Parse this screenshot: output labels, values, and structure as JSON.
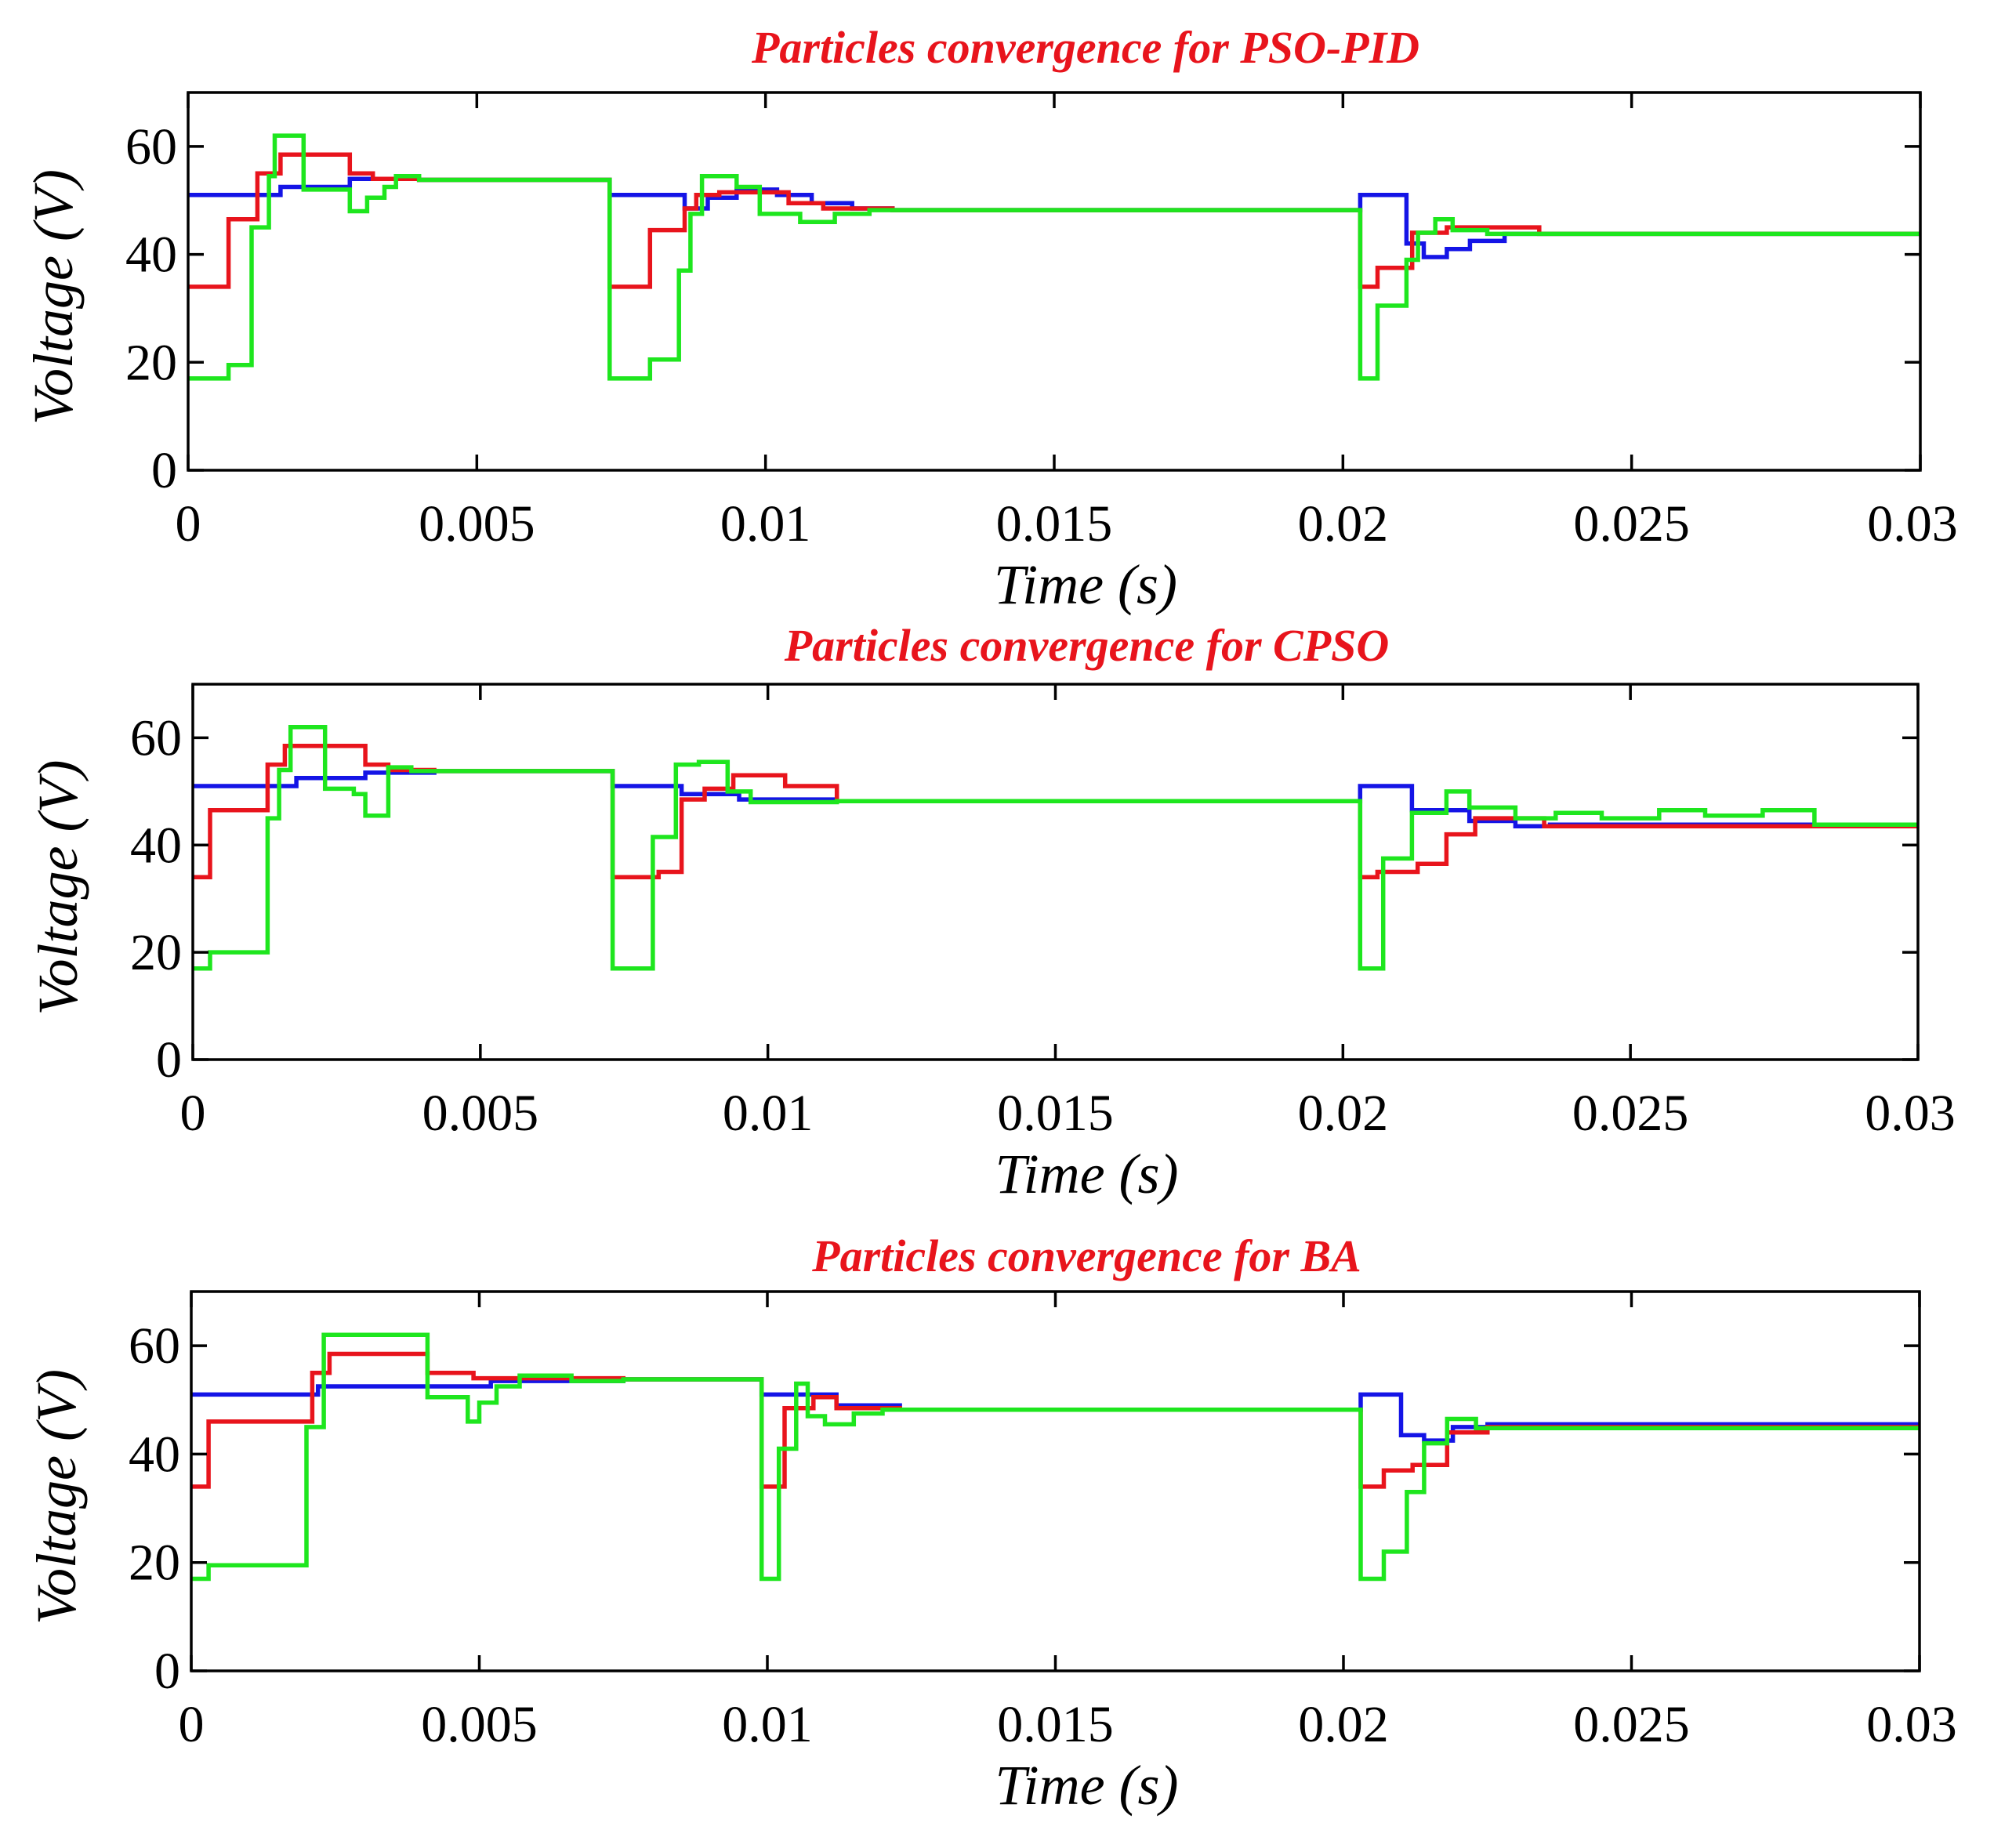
{
  "chart_data": [
    {
      "type": "line",
      "title": "Particles convergence for PSO-PID",
      "xlabel": "Time (s)",
      "ylabel": "Voltage (V)",
      "xlim": [
        0,
        0.03
      ],
      "ylim": [
        0,
        70
      ],
      "xticks": [
        "0",
        "0.005",
        "0.01",
        "0.015",
        "0.02",
        "0.025",
        "0.03"
      ],
      "yticks": [
        "0",
        "20",
        "40",
        "60"
      ],
      "grid": false,
      "series": [
        {
          "color": "#1414e6",
          "x": [
            0,
            0.0016,
            0.0016,
            0.0028,
            0.0028,
            0.004,
            0.004,
            0.0073,
            0.0073,
            0.0086,
            0.0086,
            0.009,
            0.009,
            0.0095,
            0.0095,
            0.0102,
            0.0102,
            0.0108,
            0.0108,
            0.0115,
            0.0115,
            0.0122,
            0.0122,
            0.0203,
            0.0203,
            0.0211,
            0.0211,
            0.0214,
            0.0214,
            0.0218,
            0.0218,
            0.0222,
            0.0222,
            0.0228,
            0.0228,
            0.03
          ],
          "y": [
            51,
            51,
            52.5,
            52.5,
            54,
            54,
            53.8,
            53.8,
            51,
            51,
            48.5,
            48.5,
            50.5,
            50.5,
            52,
            52,
            51,
            51,
            49.5,
            49.5,
            48.5,
            48.5,
            48.2,
            48.2,
            51,
            51,
            42,
            42,
            39.5,
            39.5,
            41,
            41,
            42.5,
            42.5,
            43.8,
            43.8
          ]
        },
        {
          "color": "#e8141c",
          "x": [
            0,
            0.0007,
            0.0007,
            0.0012,
            0.0012,
            0.0016,
            0.0016,
            0.0028,
            0.0028,
            0.0032,
            0.0032,
            0.004,
            0.004,
            0.0073,
            0.0073,
            0.008,
            0.008,
            0.0086,
            0.0086,
            0.0088,
            0.0088,
            0.0092,
            0.0092,
            0.0104,
            0.0104,
            0.011,
            0.011,
            0.0122,
            0.0122,
            0.0203,
            0.0203,
            0.0206,
            0.0206,
            0.0212,
            0.0212,
            0.0218,
            0.0218,
            0.0234,
            0.0234,
            0.03
          ],
          "y": [
            34,
            34,
            46.5,
            46.5,
            55,
            55,
            58.5,
            58.5,
            55,
            55,
            54,
            54,
            53.8,
            53.8,
            34,
            34,
            44.5,
            44.5,
            48.5,
            48.5,
            51,
            51,
            51.5,
            51.5,
            49.5,
            49.5,
            48.5,
            48.5,
            48.2,
            48.2,
            34,
            34,
            37.5,
            37.5,
            44,
            44,
            45,
            45,
            43.8,
            43.8
          ]
        },
        {
          "color": "#1ee61e",
          "x": [
            0,
            0.0007,
            0.0007,
            0.0011,
            0.0011,
            0.0014,
            0.0014,
            0.0015,
            0.0015,
            0.002,
            0.002,
            0.0028,
            0.0028,
            0.0031,
            0.0031,
            0.0034,
            0.0034,
            0.0036,
            0.0036,
            0.004,
            0.004,
            0.0073,
            0.0073,
            0.008,
            0.008,
            0.0085,
            0.0085,
            0.0087,
            0.0087,
            0.0089,
            0.0089,
            0.0095,
            0.0095,
            0.0099,
            0.0099,
            0.0106,
            0.0106,
            0.0112,
            0.0112,
            0.0118,
            0.0118,
            0.0203,
            0.0203,
            0.0206,
            0.0206,
            0.0211,
            0.0211,
            0.0213,
            0.0213,
            0.0216,
            0.0216,
            0.0219,
            0.0219,
            0.0225,
            0.0225,
            0.03
          ],
          "y": [
            17,
            17,
            19.5,
            19.5,
            45,
            45,
            54.5,
            54.5,
            62,
            62,
            52,
            52,
            48,
            48,
            50.5,
            50.5,
            52.5,
            52.5,
            54.5,
            54.5,
            53.8,
            53.8,
            17,
            17,
            20.5,
            20.5,
            37,
            37,
            47.5,
            47.5,
            54.5,
            54.5,
            52.5,
            52.5,
            47.5,
            47.5,
            46,
            46,
            47.5,
            47.5,
            48.2,
            48.2,
            17,
            17,
            30.5,
            30.5,
            39,
            39,
            44,
            44,
            46.5,
            46.5,
            44.5,
            44.5,
            43.8,
            43.8
          ]
        }
      ]
    },
    {
      "type": "line",
      "title": "Particles convergence for CPSO",
      "xlabel": "Time (s)",
      "ylabel": "Voltage (V)",
      "xlim": [
        0,
        0.03
      ],
      "ylim": [
        0,
        70
      ],
      "xticks": [
        "0",
        "0.005",
        "0.01",
        "0.015",
        "0.02",
        "0.025",
        "0.03"
      ],
      "yticks": [
        "0",
        "20",
        "40",
        "60"
      ],
      "grid": false,
      "series": [
        {
          "color": "#1414e6",
          "x": [
            0,
            0.0018,
            0.0018,
            0.003,
            0.003,
            0.0042,
            0.0042,
            0.0073,
            0.0073,
            0.0085,
            0.0085,
            0.0095,
            0.0095,
            0.0112,
            0.0112,
            0.0203,
            0.0203,
            0.0212,
            0.0212,
            0.0222,
            0.0222,
            0.023,
            0.023,
            0.0236,
            0.0236,
            0.03
          ],
          "y": [
            51,
            51,
            52.5,
            52.5,
            53.5,
            53.5,
            53.8,
            53.8,
            51,
            51,
            49.5,
            49.5,
            48.5,
            48.5,
            48.2,
            48.2,
            51,
            51,
            46.5,
            46.5,
            44.5,
            44.5,
            43.5,
            43.5,
            43.8,
            43.8
          ]
        },
        {
          "color": "#e8141c",
          "x": [
            0,
            0.0003,
            0.0003,
            0.0013,
            0.0013,
            0.0016,
            0.0016,
            0.003,
            0.003,
            0.0034,
            0.0034,
            0.0042,
            0.0042,
            0.0073,
            0.0073,
            0.0081,
            0.0081,
            0.0085,
            0.0085,
            0.0089,
            0.0089,
            0.0094,
            0.0094,
            0.0103,
            0.0103,
            0.0112,
            0.0112,
            0.0203,
            0.0203,
            0.0206,
            0.0206,
            0.0213,
            0.0213,
            0.0218,
            0.0218,
            0.0223,
            0.0223,
            0.0235,
            0.0235,
            0.03
          ],
          "y": [
            34,
            34,
            46.5,
            46.5,
            55,
            55,
            58.5,
            58.5,
            55,
            55,
            54,
            54,
            53.8,
            53.8,
            34,
            34,
            35,
            35,
            48.5,
            48.5,
            50.5,
            50.5,
            53,
            53,
            51,
            51,
            48.2,
            48.2,
            34,
            34,
            35,
            35,
            36.5,
            36.5,
            42,
            42,
            45,
            45,
            43.5,
            43.5
          ]
        },
        {
          "color": "#1ee61e",
          "x": [
            0,
            0.0003,
            0.0003,
            0.0013,
            0.0013,
            0.0015,
            0.0015,
            0.0017,
            0.0017,
            0.0023,
            0.0023,
            0.0028,
            0.0028,
            0.003,
            0.003,
            0.0034,
            0.0034,
            0.0038,
            0.0038,
            0.0073,
            0.0073,
            0.008,
            0.008,
            0.0084,
            0.0084,
            0.0088,
            0.0088,
            0.0093,
            0.0093,
            0.0097,
            0.0097,
            0.0112,
            0.0112,
            0.0203,
            0.0203,
            0.0207,
            0.0207,
            0.0212,
            0.0212,
            0.0218,
            0.0218,
            0.0222,
            0.0222,
            0.023,
            0.023,
            0.0237,
            0.0237,
            0.0245,
            0.0245,
            0.0255,
            0.0255,
            0.0263,
            0.0263,
            0.0273,
            0.0273,
            0.0282,
            0.0282,
            0.03
          ],
          "y": [
            17,
            17,
            20,
            20,
            45,
            45,
            54,
            54,
            62,
            62,
            50.5,
            50.5,
            49.5,
            49.5,
            45.5,
            45.5,
            54.5,
            54.5,
            53.8,
            53.8,
            17,
            17,
            41.5,
            41.5,
            55,
            55,
            55.5,
            55.5,
            50,
            50,
            48,
            48,
            48.2,
            48.2,
            17,
            17,
            37.5,
            37.5,
            46,
            46,
            50,
            50,
            47,
            47,
            45,
            45,
            46,
            46,
            45,
            45,
            46.5,
            46.5,
            45.5,
            45.5,
            46.5,
            46.5,
            43.8,
            43.8
          ]
        }
      ]
    },
    {
      "type": "line",
      "title": "Particles convergence for BA",
      "xlabel": "Time (s)",
      "ylabel": "Voltage (V)",
      "xlim": [
        0,
        0.03
      ],
      "ylim": [
        0,
        70
      ],
      "xticks": [
        "0",
        "0.005",
        "0.01",
        "0.015",
        "0.02",
        "0.025",
        "0.03"
      ],
      "yticks": [
        "0",
        "20",
        "40",
        "60"
      ],
      "grid": false,
      "series": [
        {
          "color": "#1414e6",
          "x": [
            0,
            0.0022,
            0.0022,
            0.0052,
            0.0052,
            0.0075,
            0.0075,
            0.0099,
            0.0099,
            0.0112,
            0.0112,
            0.0123,
            0.0123,
            0.0203,
            0.0203,
            0.021,
            0.021,
            0.0214,
            0.0214,
            0.0219,
            0.0219,
            0.0225,
            0.0225,
            0.03
          ],
          "y": [
            51,
            51,
            52.5,
            52.5,
            53.5,
            53.5,
            53.8,
            53.8,
            51,
            51,
            49,
            49,
            48.2,
            48.2,
            51,
            51,
            43.5,
            43.5,
            42.5,
            42.5,
            45,
            45,
            45.5,
            45.5
          ]
        },
        {
          "color": "#e8141c",
          "x": [
            0,
            0.0003,
            0.0003,
            0.0021,
            0.0021,
            0.0024,
            0.0024,
            0.0041,
            0.0041,
            0.0049,
            0.0049,
            0.0075,
            0.0075,
            0.0099,
            0.0099,
            0.0103,
            0.0103,
            0.0108,
            0.0108,
            0.0112,
            0.0112,
            0.0123,
            0.0123,
            0.0203,
            0.0203,
            0.0207,
            0.0207,
            0.0212,
            0.0212,
            0.0218,
            0.0218,
            0.0225,
            0.0225,
            0.03
          ],
          "y": [
            34,
            34,
            46,
            46,
            55,
            55,
            58.5,
            58.5,
            55,
            55,
            54,
            54,
            53.8,
            53.8,
            34,
            34,
            48.5,
            48.5,
            50.5,
            50.5,
            48.5,
            48.5,
            48.2,
            48.2,
            34,
            34,
            37,
            37,
            38,
            38,
            44,
            44,
            45,
            45
          ]
        },
        {
          "color": "#1ee61e",
          "x": [
            0,
            0.0003,
            0.0003,
            0.002,
            0.002,
            0.0023,
            0.0023,
            0.0041,
            0.0041,
            0.0048,
            0.0048,
            0.005,
            0.005,
            0.0053,
            0.0053,
            0.0057,
            0.0057,
            0.0066,
            0.0066,
            0.0075,
            0.0075,
            0.0099,
            0.0099,
            0.0102,
            0.0102,
            0.0105,
            0.0105,
            0.0107,
            0.0107,
            0.011,
            0.011,
            0.0115,
            0.0115,
            0.012,
            0.012,
            0.0203,
            0.0203,
            0.0207,
            0.0207,
            0.0211,
            0.0211,
            0.0214,
            0.0214,
            0.0218,
            0.0218,
            0.0223,
            0.0223,
            0.03
          ],
          "y": [
            17,
            17,
            19.5,
            19.5,
            45,
            45,
            62,
            62,
            50.5,
            50.5,
            46,
            46,
            49.5,
            49.5,
            52.5,
            52.5,
            54.5,
            54.5,
            53.5,
            53.5,
            53.8,
            53.8,
            17,
            17,
            41,
            41,
            53,
            53,
            47,
            47,
            45.5,
            45.5,
            47.5,
            47.5,
            48.2,
            48.2,
            17,
            17,
            22,
            22,
            33,
            33,
            42,
            42,
            46.5,
            46.5,
            44.8,
            44.8
          ]
        }
      ]
    }
  ]
}
